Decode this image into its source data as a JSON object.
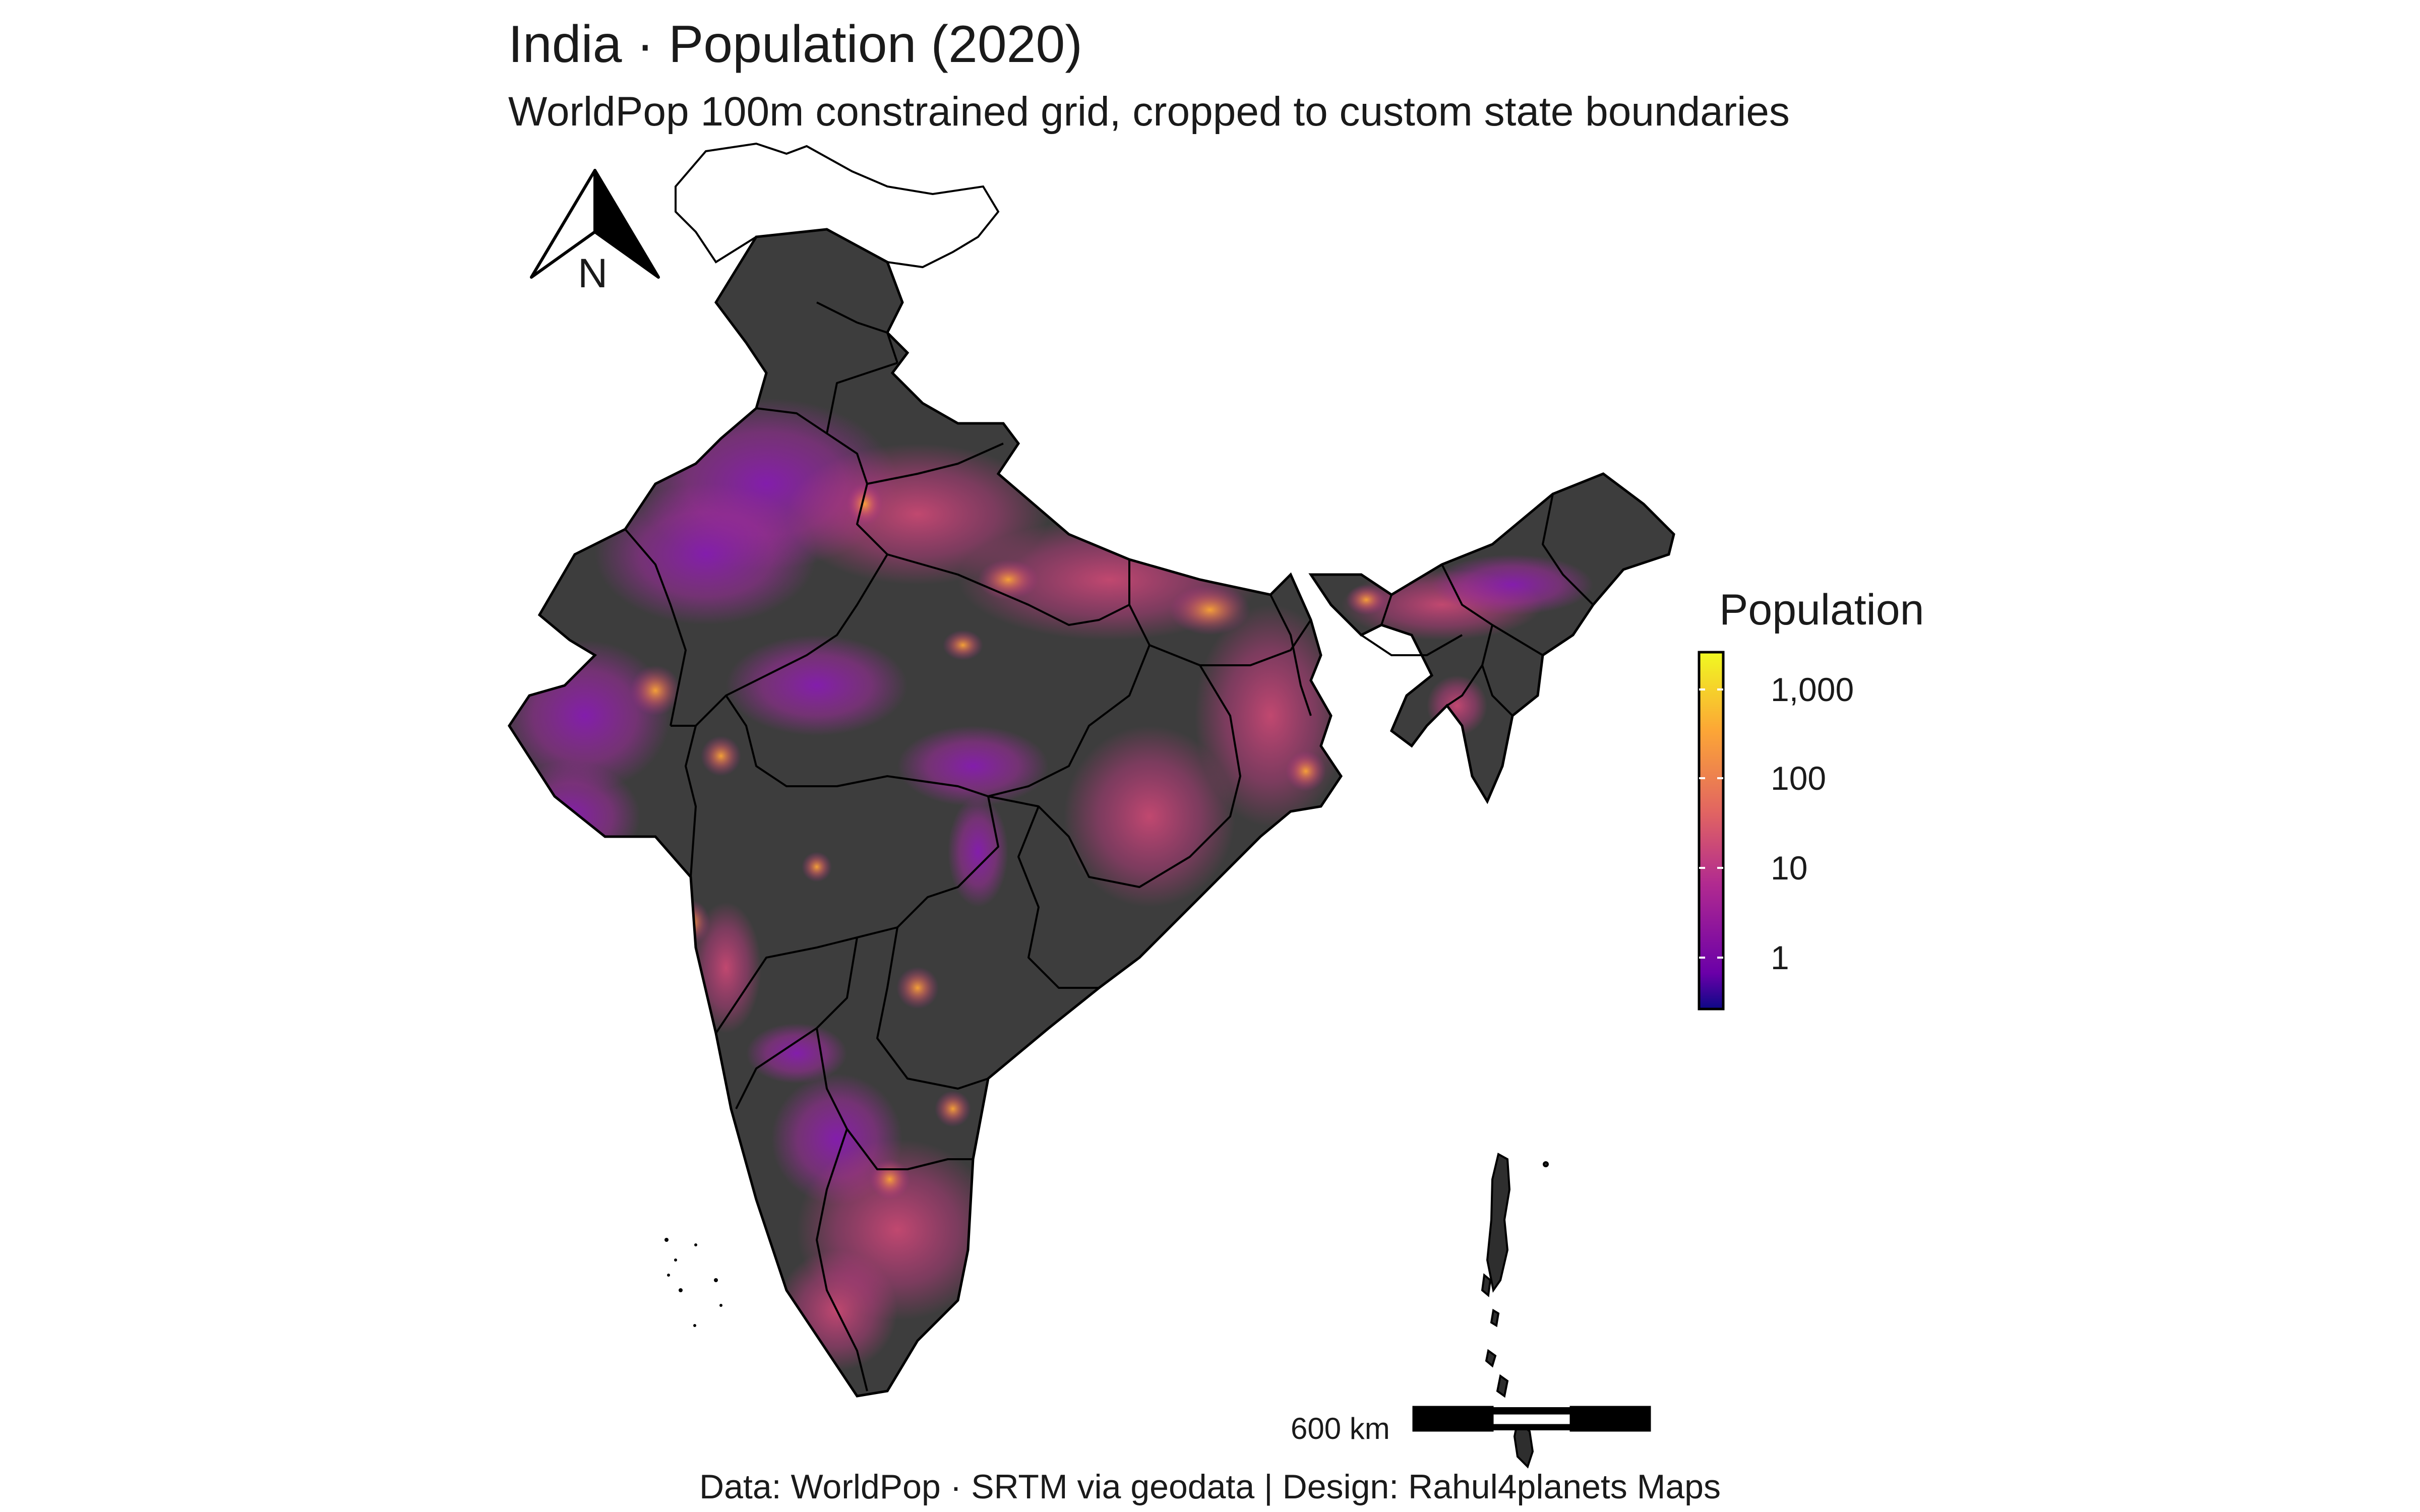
{
  "title": "India · Population (2020)",
  "subtitle": "WorldPop 100m constrained grid, cropped to custom state boundaries",
  "caption": "Data: WorldPop · SRTM via geodata | Design: Rahul4planets Maps",
  "north_arrow": {
    "label": "N",
    "icon": "north-arrow-icon"
  },
  "scalebar": {
    "label": "600 km"
  },
  "legend": {
    "title": "Population",
    "scale": "log",
    "palette": [
      "#0d0887",
      "#6a00a8",
      "#b12a90",
      "#e16462",
      "#fca636",
      "#f0f921"
    ],
    "ticks": [
      {
        "label": "1,000",
        "value": 1000
      },
      {
        "label": "100",
        "value": 100
      },
      {
        "label": "10",
        "value": 10
      },
      {
        "label": "1",
        "value": 1
      }
    ]
  },
  "colors": {
    "land": "#3d3d3d",
    "border": "#000000",
    "outside_area": "#ffffff",
    "background": "#ffffff"
  }
}
